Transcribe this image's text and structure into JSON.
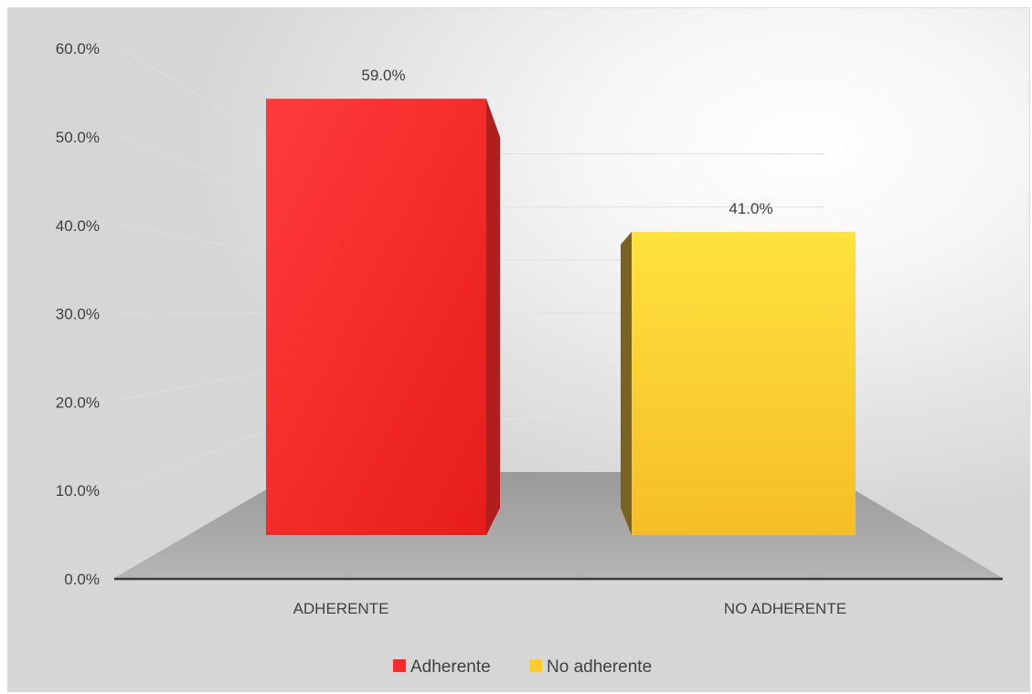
{
  "chart_data": {
    "type": "bar",
    "categories": [
      "ADHERENTE",
      "NO ADHERENTE"
    ],
    "values": [
      59.0,
      41.0
    ],
    "data_labels": [
      "59.0%",
      "41.0%"
    ],
    "y_ticks": [
      "0.0%",
      "10.0%",
      "20.0%",
      "30.0%",
      "40.0%",
      "50.0%",
      "60.0%"
    ],
    "ylim": [
      0,
      60
    ],
    "legend": [
      "Adherente",
      "No adherente"
    ],
    "legend_position": "bottom",
    "colors": [
      "#ff2a2a",
      "#ffcc2a"
    ],
    "grid": true,
    "style": "3d"
  }
}
